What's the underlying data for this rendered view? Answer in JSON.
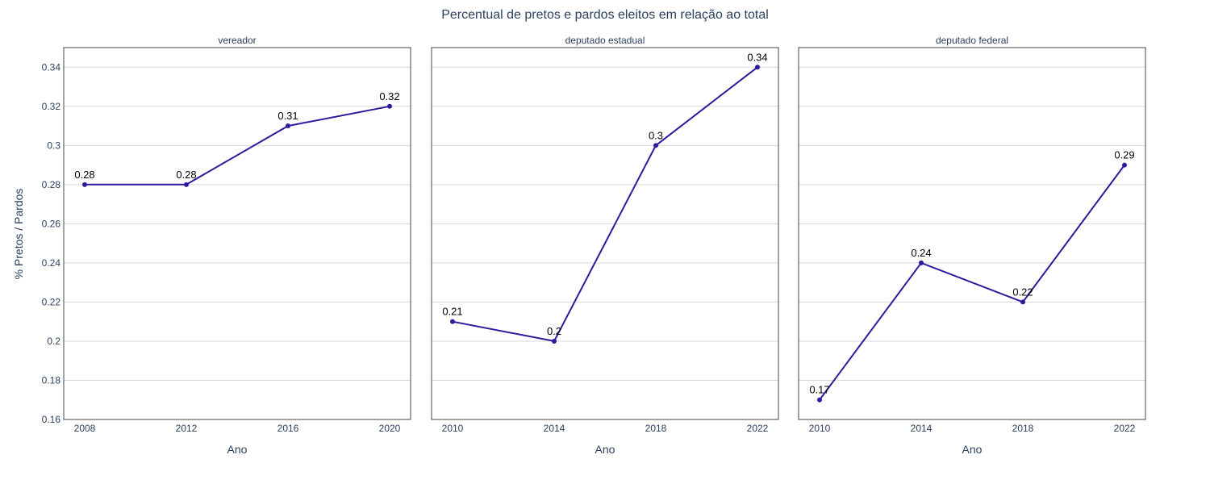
{
  "chart_data": {
    "type": "line",
    "title": "Percentual de pretos e pardos eleitos em relação ao total",
    "ylabel": "% Pretos / Pardos",
    "ylim": [
      0.16,
      0.35
    ],
    "yticks": [
      "0.16",
      "0.18",
      "0.2",
      "0.22",
      "0.24",
      "0.26",
      "0.28",
      "0.3",
      "0.32",
      "0.34"
    ],
    "grid": true,
    "colors": {
      "line": "#2d1a9e",
      "marker": "#2d1a9e"
    },
    "panels": [
      {
        "subtitle": "vereador",
        "xlabel": "Ano",
        "x": [
          "2008",
          "2012",
          "2016",
          "2020"
        ],
        "y": [
          0.28,
          0.28,
          0.31,
          0.32
        ],
        "labels": [
          "0.28",
          "0.28",
          "0.31",
          "0.32"
        ]
      },
      {
        "subtitle": "deputado estadual",
        "xlabel": "Ano",
        "x": [
          "2010",
          "2014",
          "2018",
          "2022"
        ],
        "y": [
          0.21,
          0.2,
          0.3,
          0.34
        ],
        "labels": [
          "0.21",
          "0.2",
          "0.3",
          "0.34"
        ]
      },
      {
        "subtitle": "deputado federal",
        "xlabel": "Ano",
        "x": [
          "2010",
          "2014",
          "2018",
          "2022"
        ],
        "y": [
          0.17,
          0.24,
          0.22,
          0.29
        ],
        "labels": [
          "0.17",
          "0.24",
          "0.22",
          "0.29"
        ]
      }
    ]
  }
}
